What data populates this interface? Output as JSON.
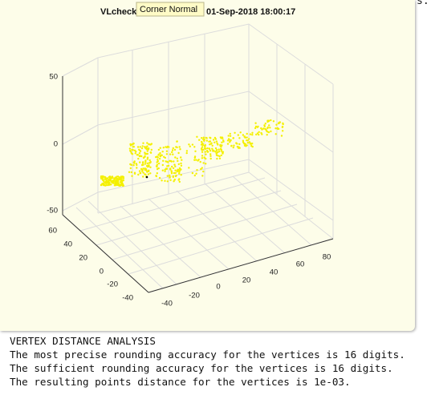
{
  "figure": {
    "title_start": "VLcheck",
    "title_end": "01-Sep-2018 18:00:17",
    "tooltip": "Corner Normal",
    "axes": {
      "zticks": [
        50,
        0,
        -50
      ],
      "yticks": [
        60,
        40,
        20,
        0,
        -20,
        -40
      ],
      "xticks": [
        -40,
        -20,
        0,
        20,
        40,
        60,
        80
      ]
    }
  },
  "console": {
    "fragment": "s.",
    "lines": [
      "VERTEX DISTANCE ANALYSIS",
      "The most precise rounding accuracy for the vertices is 16 digits.",
      "The sufficient rounding accuracy for the vertices is 16 digits.",
      "The resulting points distance for the vertices is 1e-03."
    ]
  }
}
